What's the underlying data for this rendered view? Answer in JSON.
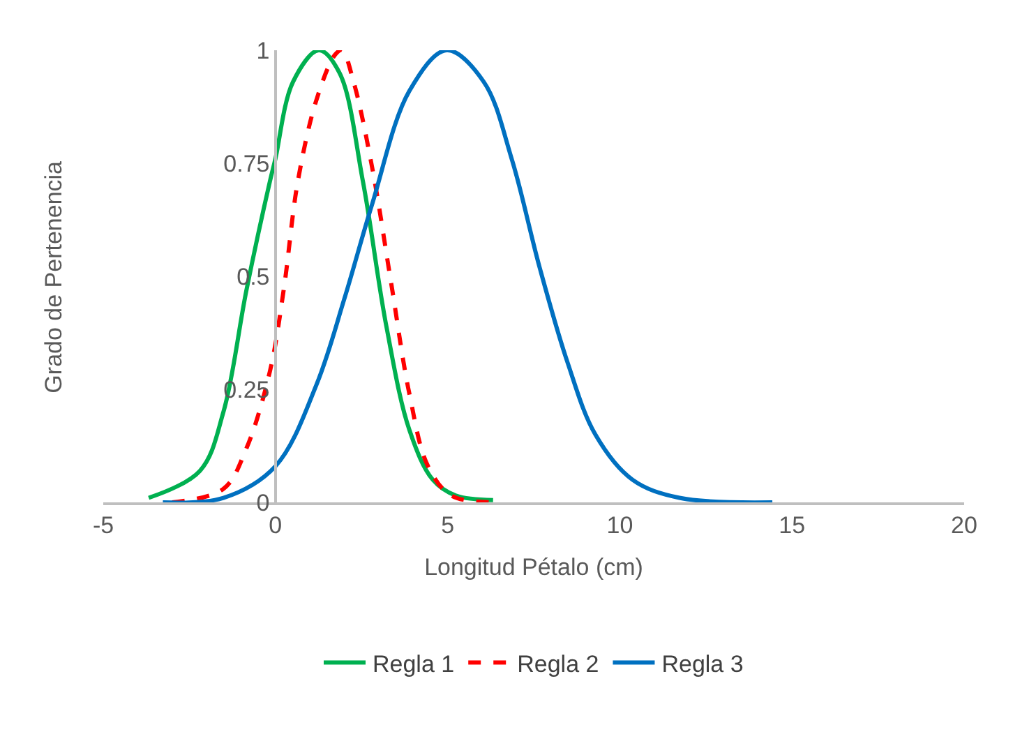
{
  "chart_data": {
    "type": "line",
    "xlabel": "Longitud Pétalo (cm)",
    "ylabel": "Grado de Pertenencia",
    "xlim": [
      -5,
      20
    ],
    "xticks": [
      -5,
      0,
      5,
      10,
      15,
      20
    ],
    "ylim": [
      0,
      1
    ],
    "yticks": [
      0,
      0.25,
      0.5,
      0.75,
      1
    ],
    "legend": "bottom",
    "series": [
      {
        "name": "Regla 1",
        "color": "#00b050",
        "line_style": "solid",
        "x": [
          -3.68,
          -2.19,
          -1.51,
          -0.84,
          -0.16,
          0,
          0.51,
          1.26,
          1.86,
          2.54,
          3.22,
          3.89,
          4.57,
          5.24,
          6.32
        ],
        "values": [
          0.01,
          0.07,
          0.2,
          0.47,
          0.71,
          0.76,
          0.93,
          1.0,
          0.95,
          0.71,
          0.39,
          0.16,
          0.05,
          0.015,
          0.005
        ]
      },
      {
        "name": "Regla 2",
        "color": "#ff0000",
        "line_style": "dashed",
        "x": [
          -3.0,
          -1.51,
          -0.84,
          -0.16,
          0.24,
          0.65,
          1.19,
          1.73,
          1.93,
          2.27,
          2.81,
          3.35,
          3.89,
          4.43,
          5.11,
          6.39
        ],
        "values": [
          0,
          0.03,
          0.12,
          0.29,
          0.47,
          0.71,
          0.89,
          0.99,
          1.0,
          0.93,
          0.74,
          0.49,
          0.24,
          0.08,
          0.015,
          0
        ]
      },
      {
        "name": "Regla 3",
        "color": "#0070c0",
        "line_style": "solid",
        "x": [
          -3.27,
          -1.51,
          0,
          1.19,
          2.0,
          2.81,
          3.89,
          4.97,
          6.05,
          6.86,
          7.67,
          8.48,
          9.29,
          10.37,
          11.73,
          14.43
        ],
        "values": [
          0,
          0.01,
          0.08,
          0.26,
          0.45,
          0.66,
          0.91,
          1.0,
          0.93,
          0.76,
          0.52,
          0.31,
          0.15,
          0.05,
          0.01,
          0
        ]
      }
    ]
  }
}
